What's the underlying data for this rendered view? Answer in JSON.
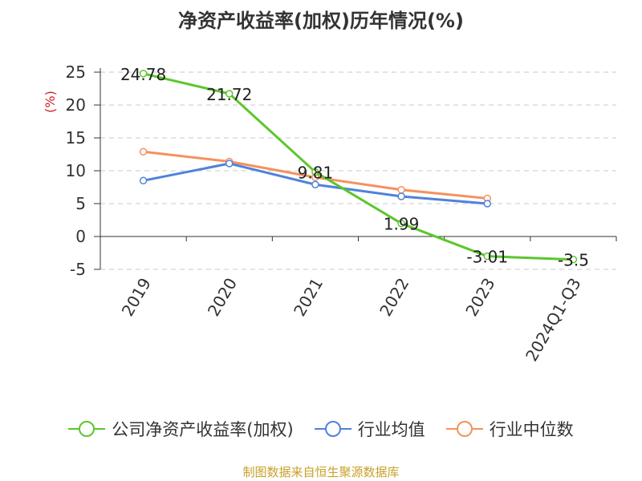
{
  "title": "净资产收益率(加权)历年情况(%)",
  "source": "制图数据来自恒生聚源数据库",
  "chart_data": {
    "type": "line",
    "categories": [
      "2019",
      "2020",
      "2021",
      "2022",
      "2023",
      "2024Q1-Q3"
    ],
    "ylabel": "(%)",
    "ylim": [
      -5,
      25
    ],
    "yticks": [
      -5,
      0,
      5,
      10,
      15,
      20,
      25
    ],
    "grid": true,
    "legend_position": "bottom",
    "series": [
      {
        "name": "公司净资产收益率(加权)",
        "color": "#5cc62c",
        "values": [
          24.78,
          21.72,
          9.81,
          1.99,
          -3.01,
          -3.5
        ],
        "labels": [
          "24.78",
          "21.72",
          "9.81",
          "1.99",
          "-3.01",
          "-3.5"
        ]
      },
      {
        "name": "行业均值",
        "color": "#4f82d9",
        "values": [
          8.5,
          11.1,
          7.9,
          6.1,
          5.0,
          null
        ]
      },
      {
        "name": "行业中位数",
        "color": "#f5915e",
        "values": [
          12.9,
          11.4,
          9.0,
          7.1,
          5.8,
          null
        ]
      }
    ]
  }
}
